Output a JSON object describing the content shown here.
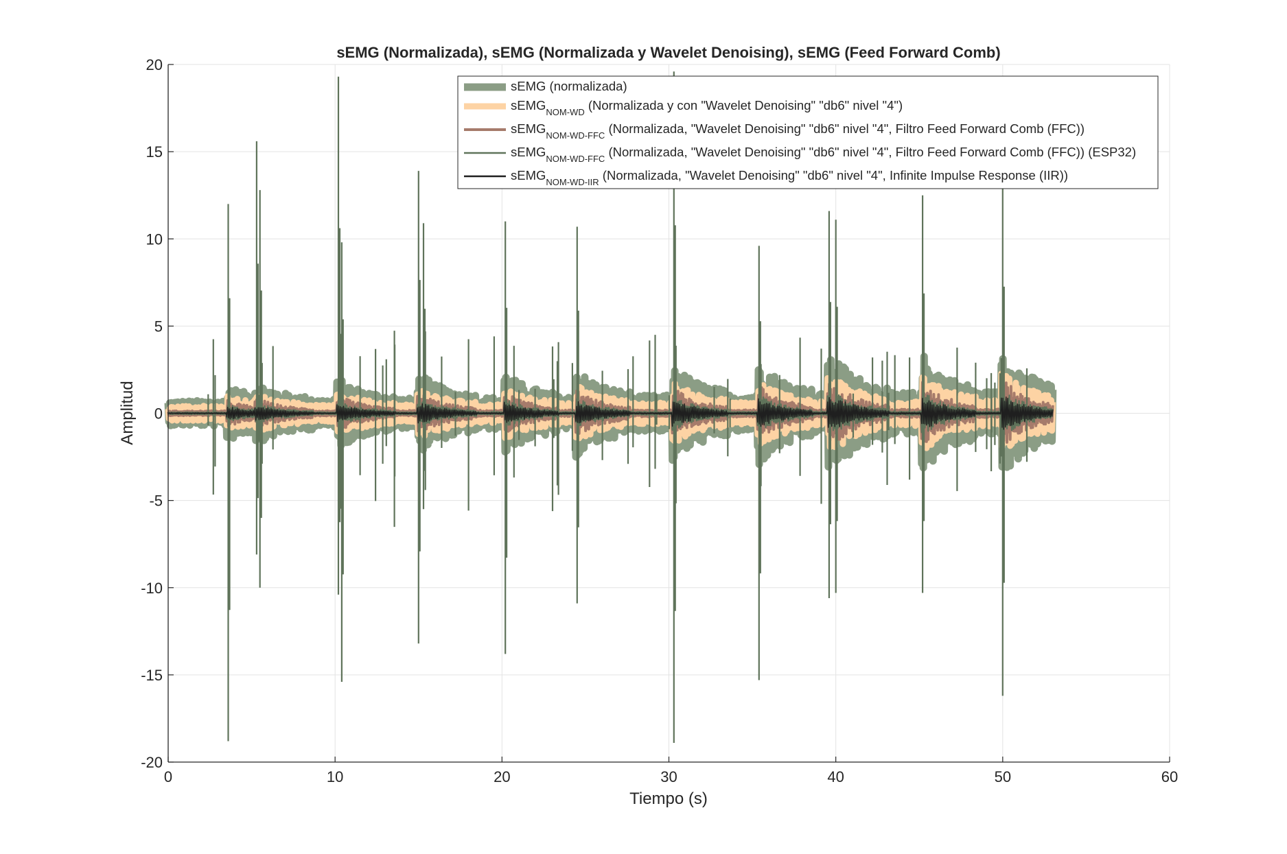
{
  "chart_data": {
    "type": "line",
    "title": "sEMG (Normalizada), sEMG (Normalizada y Wavelet Denoising), sEMG (Feed Forward Comb)",
    "xlabel": "Tiempo (s)",
    "ylabel": "Amplitud",
    "xlim": [
      0,
      60
    ],
    "ylim": [
      -20,
      20
    ],
    "xticks": [
      "0",
      "10",
      "20",
      "30",
      "40",
      "50",
      "60"
    ],
    "yticks": [
      "20",
      "15",
      "10",
      "5",
      "0",
      "-5",
      "-10",
      "-15",
      "-20"
    ],
    "grid": true,
    "legend_position": "top-right",
    "duration": 53,
    "activity_bursts": [
      {
        "t": 3.6,
        "peak_high": 12.0,
        "peak_low": -18.8,
        "envelope": 3.3
      },
      {
        "t": 5.3,
        "peak_high": 15.6,
        "peak_low": -8.1,
        "envelope": 1.9
      },
      {
        "t": 5.5,
        "peak_high": 12.8,
        "peak_low": -10.0,
        "envelope": 1.8
      },
      {
        "t": 10.2,
        "peak_high": 19.3,
        "peak_low": -10.4,
        "envelope": 3.3
      },
      {
        "t": 10.4,
        "peak_high": 9.8,
        "peak_low": -15.4,
        "envelope": 3.0
      },
      {
        "t": 15.0,
        "peak_high": 13.9,
        "peak_low": -13.2,
        "envelope": 3.4
      },
      {
        "t": 15.3,
        "peak_high": 10.9,
        "peak_low": -5.5,
        "envelope": 3.0
      },
      {
        "t": 20.2,
        "peak_high": 11.0,
        "peak_low": -13.8,
        "envelope": 3.1
      },
      {
        "t": 24.5,
        "peak_high": 10.7,
        "peak_low": -10.9,
        "envelope": 3.8
      },
      {
        "t": 30.3,
        "peak_high": 19.6,
        "peak_low": -18.9,
        "envelope": 3.7
      },
      {
        "t": 35.4,
        "peak_high": 9.6,
        "peak_low": -15.3,
        "envelope": 3.4
      },
      {
        "t": 39.6,
        "peak_high": 11.6,
        "peak_low": -10.6,
        "envelope": 3.2
      },
      {
        "t": 40.0,
        "peak_high": 11.1,
        "peak_low": -10.3,
        "envelope": 3.6
      },
      {
        "t": 45.2,
        "peak_high": 12.5,
        "peak_low": -10.3,
        "envelope": 3.7
      },
      {
        "t": 50.0,
        "peak_high": 13.2,
        "peak_low": -16.2,
        "envelope": 3.4
      }
    ],
    "series": [
      {
        "label": "sEMG (normalizada)",
        "label_main": "sEMG (normalizada)",
        "label_sub": "",
        "label_rest": "",
        "color": "#8b9d85",
        "amp_base": 1.0,
        "amp_max": 2.8
      },
      {
        "label": "sEMG NOM-WD (Normalizada y con \"Wavelet Denoising\" \"db6\" nivel \"4\")",
        "label_main": "sEMG",
        "label_sub": "NOM-WD",
        "label_rest": " (Normalizada y con \"Wavelet Denoising\" \"db6\" nivel \"4\")",
        "color": "#fdd3a4",
        "amp_base": 0.6,
        "amp_max": 1.8
      },
      {
        "label": "sEMG NOM-WD-FFC (Normalizada, \"Wavelet Denoising\" \"db6\" nivel \"4\", Filtro Feed Forward Comb (FFC))",
        "label_main": "sEMG",
        "label_sub": "NOM-WD-FFC",
        "label_rest": " (Normalizada, \"Wavelet Denoising\" \"db6\" nivel \"4\", Filtro Feed Forward Comb (FFC))",
        "color": "#a67b6b",
        "amp_base": 0.2,
        "amp_max": 1.5
      },
      {
        "label": "sEMG NOM-WD-FFC (Normalizada, \"Wavelet Denoising\" \"db6\" nivel \"4\", Filtro Feed Forward Comb (FFC)) (ESP32)",
        "label_main": "sEMG",
        "label_sub": "NOM-WD-FFC",
        "label_rest": " (Normalizada, \"Wavelet Denoising\" \"db6\" nivel \"4\", Filtro Feed Forward Comb (FFC)) (ESP32)",
        "color": "#5f735a",
        "amp_base": 0.1,
        "amp_max": 1.0
      },
      {
        "label": "sEMG NOM-WD-IIR (Normalizada, \"Wavelet Denoising\" \"db6\" nivel \"4\", Infinite Impulse Response (IIR))",
        "label_main": "sEMG",
        "label_sub": "NOM-WD-IIR",
        "label_rest": " (Normalizada, \"Wavelet Denoising\" \"db6\" nivel \"4\", Infinite Impulse Response (IIR))",
        "color": "#1f1f1f",
        "amp_base": 0.05,
        "amp_max": 0.8
      }
    ]
  }
}
